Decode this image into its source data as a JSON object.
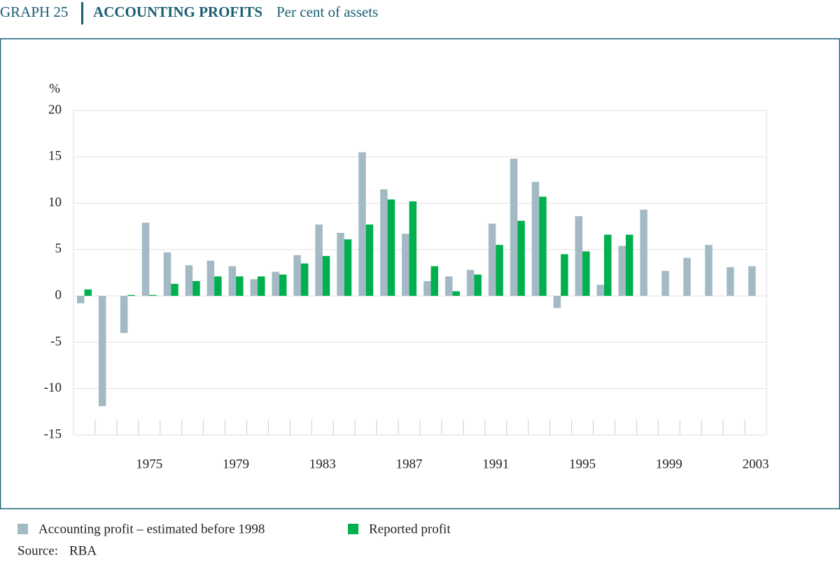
{
  "chart_data": {
    "type": "bar",
    "graph_label": "GRAPH 25",
    "title": "ACCOUNTING PROFITS",
    "subtitle": "Per cent of assets",
    "y_unit": "%",
    "source_label": "Source:",
    "source": "RBA",
    "categories": [
      null,
      null,
      null,
      "1975",
      null,
      null,
      null,
      "1979",
      null,
      null,
      null,
      "1983",
      null,
      null,
      null,
      "1987",
      null,
      null,
      null,
      "1991",
      null,
      null,
      null,
      "1995",
      null,
      null,
      null,
      "1999",
      null,
      null,
      null,
      "2003"
    ],
    "series": [
      {
        "name": "Accounting profit – estimated before 1998",
        "color": "#a3bac4",
        "values": [
          -0.8,
          -11.9,
          -4.0,
          7.9,
          4.7,
          3.3,
          3.8,
          3.2,
          1.8,
          2.6,
          4.4,
          7.7,
          6.8,
          15.5,
          11.5,
          6.7,
          1.6,
          2.1,
          2.8,
          7.8,
          14.8,
          12.3,
          -1.3,
          8.6,
          1.2,
          5.4,
          9.3,
          2.7,
          4.1,
          5.5,
          3.1,
          3.2
        ]
      },
      {
        "name": "Reported profit",
        "color": "#00b04f",
        "values": [
          0.7,
          null,
          0.1,
          0.1,
          1.3,
          1.6,
          2.1,
          2.1,
          2.1,
          2.3,
          3.5,
          4.3,
          6.1,
          7.7,
          10.4,
          10.2,
          3.2,
          0.5,
          2.3,
          5.5,
          8.1,
          10.7,
          4.5,
          4.8,
          6.6,
          6.6,
          null,
          null,
          null,
          null,
          null,
          null
        ]
      }
    ],
    "ylim": [
      -15,
      20
    ],
    "yticks": [
      -15,
      -10,
      -5,
      0,
      5,
      10,
      15,
      20
    ],
    "grid": true
  }
}
